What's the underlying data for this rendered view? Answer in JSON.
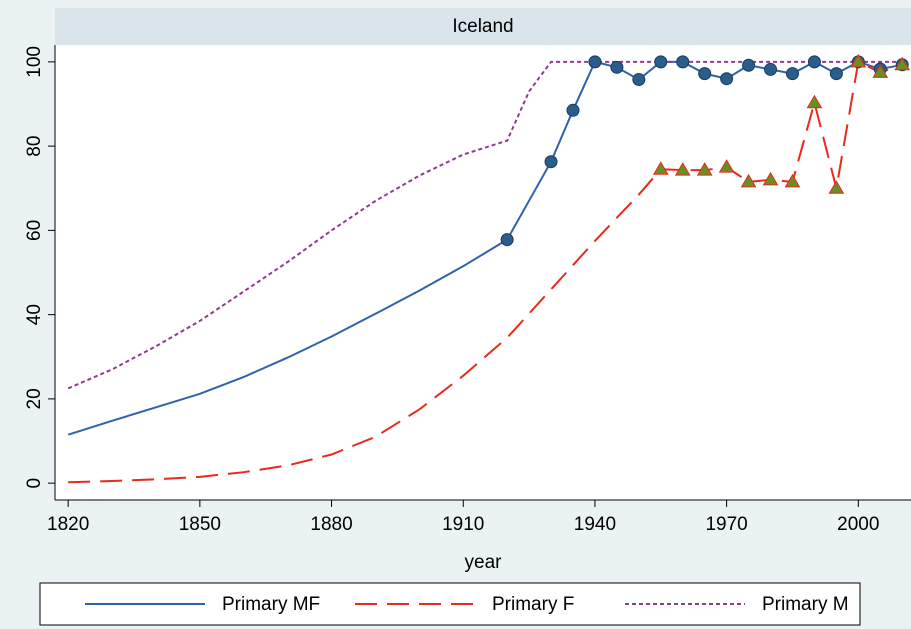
{
  "chart_data": {
    "type": "line",
    "title": "Iceland",
    "xlabel": "year",
    "xlim": [
      1817,
      2012
    ],
    "ylim": [
      -4,
      104
    ],
    "xticks": [
      1820,
      1850,
      1880,
      1910,
      1940,
      1970,
      2000
    ],
    "yticks": [
      0,
      20,
      40,
      60,
      80,
      100
    ],
    "legend": "bottom",
    "series": [
      {
        "name": "Primary MF",
        "color": "#2f63a8",
        "dash": "solid",
        "marker": "circle",
        "marker_color": "#2a5d8c",
        "x": [
          1820,
          1830,
          1840,
          1850,
          1860,
          1870,
          1880,
          1890,
          1900,
          1910,
          1920,
          1930,
          1935,
          1940,
          1945,
          1950,
          1955,
          1960,
          1965,
          1970,
          1975,
          1980,
          1985,
          1990,
          1995,
          2000,
          2005,
          2010
        ],
        "values": [
          11.5,
          14.8,
          18,
          21.2,
          25.2,
          29.8,
          34.8,
          40.2,
          45.7,
          51.5,
          57.8,
          76.3,
          88.5,
          100,
          98.7,
          95.8,
          100,
          100,
          97.2,
          96,
          99.2,
          98.2,
          97.2,
          100,
          97.2,
          100,
          98.3,
          99.3
        ],
        "marked": [
          false,
          false,
          false,
          false,
          false,
          false,
          false,
          false,
          false,
          false,
          true,
          true,
          true,
          true,
          true,
          true,
          true,
          true,
          true,
          true,
          true,
          true,
          true,
          true,
          true,
          true,
          true,
          true
        ]
      },
      {
        "name": "Primary F",
        "color": "#e8291c",
        "dash": "long",
        "marker": "triangle",
        "marker_color": "#6b8e23",
        "x": [
          1820,
          1830,
          1840,
          1850,
          1860,
          1870,
          1880,
          1890,
          1900,
          1910,
          1920,
          1930,
          1940,
          1950,
          1955,
          1960,
          1965,
          1970,
          1975,
          1980,
          1985,
          1990,
          1995,
          2000,
          2005,
          2010
        ],
        "values": [
          0.2,
          0.5,
          0.9,
          1.5,
          2.6,
          4.2,
          6.8,
          11,
          17.5,
          25.5,
          34.5,
          46,
          57.5,
          68.5,
          74.5,
          74.3,
          74.3,
          75,
          71.5,
          72,
          71.5,
          90.3,
          70,
          100,
          97.5,
          99.3
        ],
        "marked": [
          false,
          false,
          false,
          false,
          false,
          false,
          false,
          false,
          false,
          false,
          false,
          false,
          false,
          false,
          true,
          true,
          true,
          true,
          true,
          true,
          true,
          true,
          true,
          true,
          true,
          true
        ]
      },
      {
        "name": "Primary M",
        "color": "#8e3b8e",
        "dash": "dotted",
        "marker": "none",
        "x": [
          1820,
          1830,
          1840,
          1850,
          1860,
          1870,
          1880,
          1890,
          1900,
          1910,
          1920,
          1925,
          1930,
          1940,
          1950,
          1960,
          1970,
          1980,
          1990,
          2000,
          2010
        ],
        "values": [
          22.5,
          27,
          32.5,
          38.5,
          45.5,
          52.5,
          60,
          67,
          73,
          78,
          81.3,
          93,
          100,
          100,
          100,
          100,
          100,
          100,
          100,
          100,
          100
        ]
      }
    ]
  }
}
